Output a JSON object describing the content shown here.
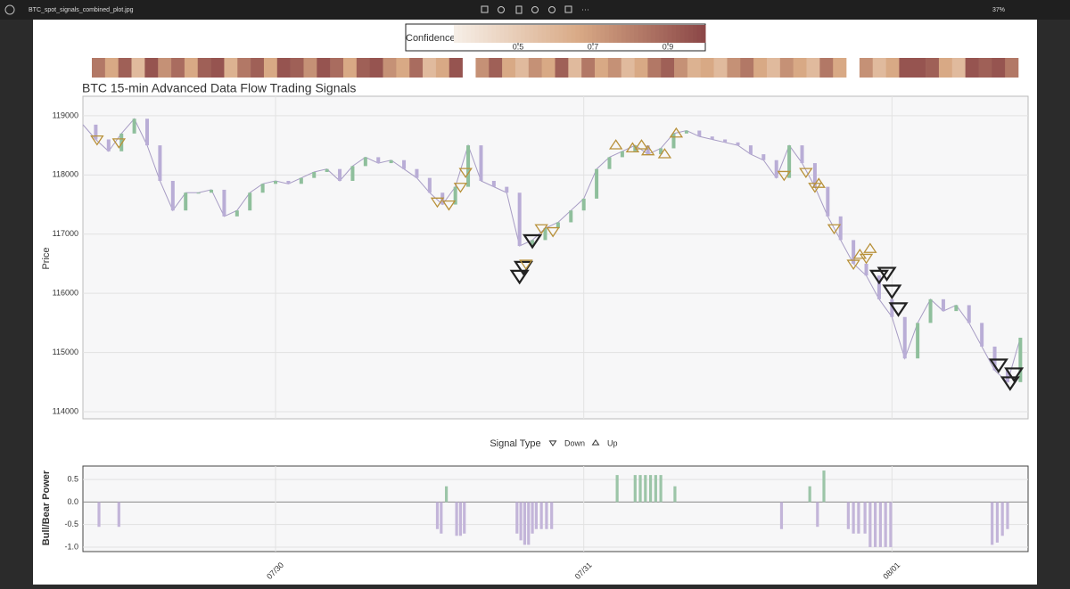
{
  "window": {
    "filename": "BTC_spot_signals_combined_plot.jpg",
    "zoom": "37%"
  },
  "chart_data": [
    {
      "type": "line",
      "title": "BTC 15-min Advanced Data Flow Trading Signals",
      "ylabel": "Price",
      "color": "#a79cc4",
      "up_color": "#8fbf9c",
      "down_color": "#b9add6",
      "x": [
        0,
        1,
        2,
        3,
        4,
        5,
        6,
        7,
        8,
        9,
        10,
        11,
        12,
        13,
        14,
        15,
        16,
        17,
        18,
        19,
        20,
        21,
        22,
        23,
        24,
        25,
        26,
        27,
        28,
        29,
        30,
        31,
        32,
        33,
        34,
        35,
        36,
        37,
        38,
        39,
        40,
        41,
        42,
        43,
        44,
        45,
        46,
        47,
        48,
        49,
        50,
        51,
        52,
        53,
        54,
        55,
        56,
        57,
        58,
        59,
        60,
        61,
        62,
        63,
        64,
        65,
        66,
        67,
        68,
        69,
        70,
        71,
        72,
        73
      ],
      "values": [
        118850,
        118600,
        118400,
        118700,
        118950,
        118500,
        117900,
        117400,
        117700,
        117700,
        117750,
        117300,
        117400,
        117700,
        117850,
        117900,
        117850,
        117950,
        118050,
        118100,
        117900,
        118150,
        118300,
        118200,
        118250,
        118100,
        117950,
        117700,
        117500,
        117800,
        118500,
        117900,
        117800,
        117700,
        116800,
        116900,
        117100,
        117200,
        117400,
        117600,
        118100,
        118300,
        118400,
        118500,
        118350,
        118450,
        118700,
        118750,
        118650,
        118600,
        118550,
        118500,
        118350,
        118250,
        117950,
        118500,
        118200,
        117800,
        117300,
        116900,
        116500,
        116300,
        115900,
        115600,
        114900,
        115500,
        115900,
        115700,
        115800,
        115500,
        115100,
        114700,
        114500,
        115250
      ],
      "xlim": [
        0,
        73.6
      ],
      "ylim": [
        113880,
        119330
      ],
      "yticks": [
        114000,
        115000,
        116000,
        117000,
        118000,
        119000
      ],
      "grid": true,
      "legend_title": "Signal Type",
      "series": [
        {
          "name": "Down",
          "symbol": "down",
          "x": [
            1.1,
            2.8,
            27.6,
            28.5,
            29.4,
            29.8,
            34.0,
            34.3,
            34.5,
            35.0,
            35.7,
            36.6,
            54.6,
            56.3,
            57.0,
            58.5,
            60.0,
            61.0,
            62.0,
            62.6,
            63.0,
            63.5,
            71.3,
            72.2,
            72.5
          ],
          "values": [
            118600,
            118550,
            117550,
            117500,
            117800,
            118050,
            116300,
            116450,
            116500,
            116900,
            117100,
            117050,
            118000,
            118050,
            117800,
            117100,
            116500,
            116600,
            116300,
            116350,
            116050,
            115750,
            114800,
            114500,
            114650
          ],
          "colors": [
            "#b8913a",
            "#b8913a",
            "#b8913a",
            "#b8913a",
            "#b8913a",
            "#b8913a",
            "#222222",
            "#222222",
            "#b8913a",
            "#222222",
            "#b8913a",
            "#b8913a",
            "#b8913a",
            "#b8913a",
            "#b8913a",
            "#b8913a",
            "#b8913a",
            "#b8913a",
            "#222222",
            "#222222",
            "#222222",
            "#222222",
            "#222222",
            "#222222",
            "#222222"
          ]
        },
        {
          "name": "Up",
          "symbol": "up",
          "x": [
            41.5,
            42.8,
            43.5,
            44.0,
            45.3,
            46.2,
            57.3,
            60.5,
            61.3
          ],
          "values": [
            118500,
            118450,
            118500,
            118400,
            118350,
            118700,
            117850,
            116650,
            116750
          ],
          "colors": [
            "#b8913a",
            "#b8913a",
            "#b8913a",
            "#b8913a",
            "#b8913a",
            "#b8913a",
            "#b8913a",
            "#b8913a",
            "#b8913a"
          ]
        }
      ]
    },
    {
      "type": "bar",
      "ylabel": "Bull/Bear Power",
      "pos_color": "#9cc5a8",
      "neg_color": "#c3b5d9",
      "x": [
        1.25,
        2.8,
        27.6,
        27.9,
        28.3,
        29.1,
        29.4,
        29.7,
        33.8,
        34.1,
        34.4,
        34.7,
        35.0,
        35.3,
        35.7,
        36.1,
        36.5,
        41.6,
        43.0,
        43.4,
        43.8,
        44.2,
        44.6,
        45.0,
        46.1,
        54.4,
        56.6,
        57.2,
        57.7,
        59.6,
        60.0,
        60.4,
        60.9,
        61.3,
        61.7,
        62.1,
        62.5,
        62.9,
        70.8,
        71.2,
        71.6,
        72.0
      ],
      "values": [
        -0.55,
        -0.55,
        -0.6,
        -0.7,
        0.35,
        -0.75,
        -0.75,
        -0.7,
        -0.7,
        -0.85,
        -0.95,
        -0.95,
        -0.7,
        -0.6,
        -0.6,
        -0.6,
        -0.6,
        0.6,
        0.6,
        0.6,
        0.6,
        0.6,
        0.6,
        0.6,
        0.35,
        -0.6,
        0.35,
        -0.55,
        0.7,
        -0.6,
        -0.7,
        -0.7,
        -0.7,
        -1.0,
        -1.0,
        -1.0,
        -1.0,
        -1.0,
        -0.95,
        -0.9,
        -0.75,
        -0.6
      ],
      "xlim": [
        0,
        73.6
      ],
      "ylim": [
        -1.1,
        0.8
      ],
      "yticks": [
        0.5,
        {
          "value": 0,
          "label": "0.0"
        },
        -0.5,
        {
          "value": -1,
          "label": "-1.0"
        }
      ],
      "xticks": [
        {
          "value": 15,
          "label": "07/30"
        },
        {
          "value": 39,
          "label": "07/31"
        },
        {
          "value": 63,
          "label": "08/01"
        }
      ]
    },
    {
      "type": "heatmap",
      "label": "Confidence",
      "clim": [
        0.2,
        1.0
      ],
      "ticks": [
        0.5,
        0.7,
        0.9
      ],
      "colors": [
        "#f6eee6",
        "#d8a985",
        "#8c4848"
      ],
      "values": [
        0.8,
        0.6,
        0.9,
        0.5,
        0.95,
        0.7,
        0.85,
        0.6,
        0.9,
        0.95,
        0.55,
        0.8,
        0.9,
        0.6,
        0.95,
        0.9,
        0.7,
        0.95,
        0.85,
        0.6,
        0.9,
        0.95,
        0.7,
        0.6,
        0.85,
        0.5,
        0.6,
        0.95,
        null,
        0.7,
        0.9,
        0.6,
        0.5,
        0.7,
        0.6,
        0.9,
        0.5,
        0.8,
        0.6,
        0.7,
        0.5,
        0.6,
        0.8,
        0.9,
        0.7,
        0.55,
        0.6,
        0.5,
        0.7,
        0.8,
        0.6,
        0.5,
        0.7,
        0.6,
        0.5,
        0.8,
        0.6,
        null,
        0.7,
        0.5,
        0.6,
        0.95,
        0.95,
        0.9,
        0.6,
        0.5,
        0.95,
        0.9,
        0.95,
        0.8
      ]
    }
  ]
}
